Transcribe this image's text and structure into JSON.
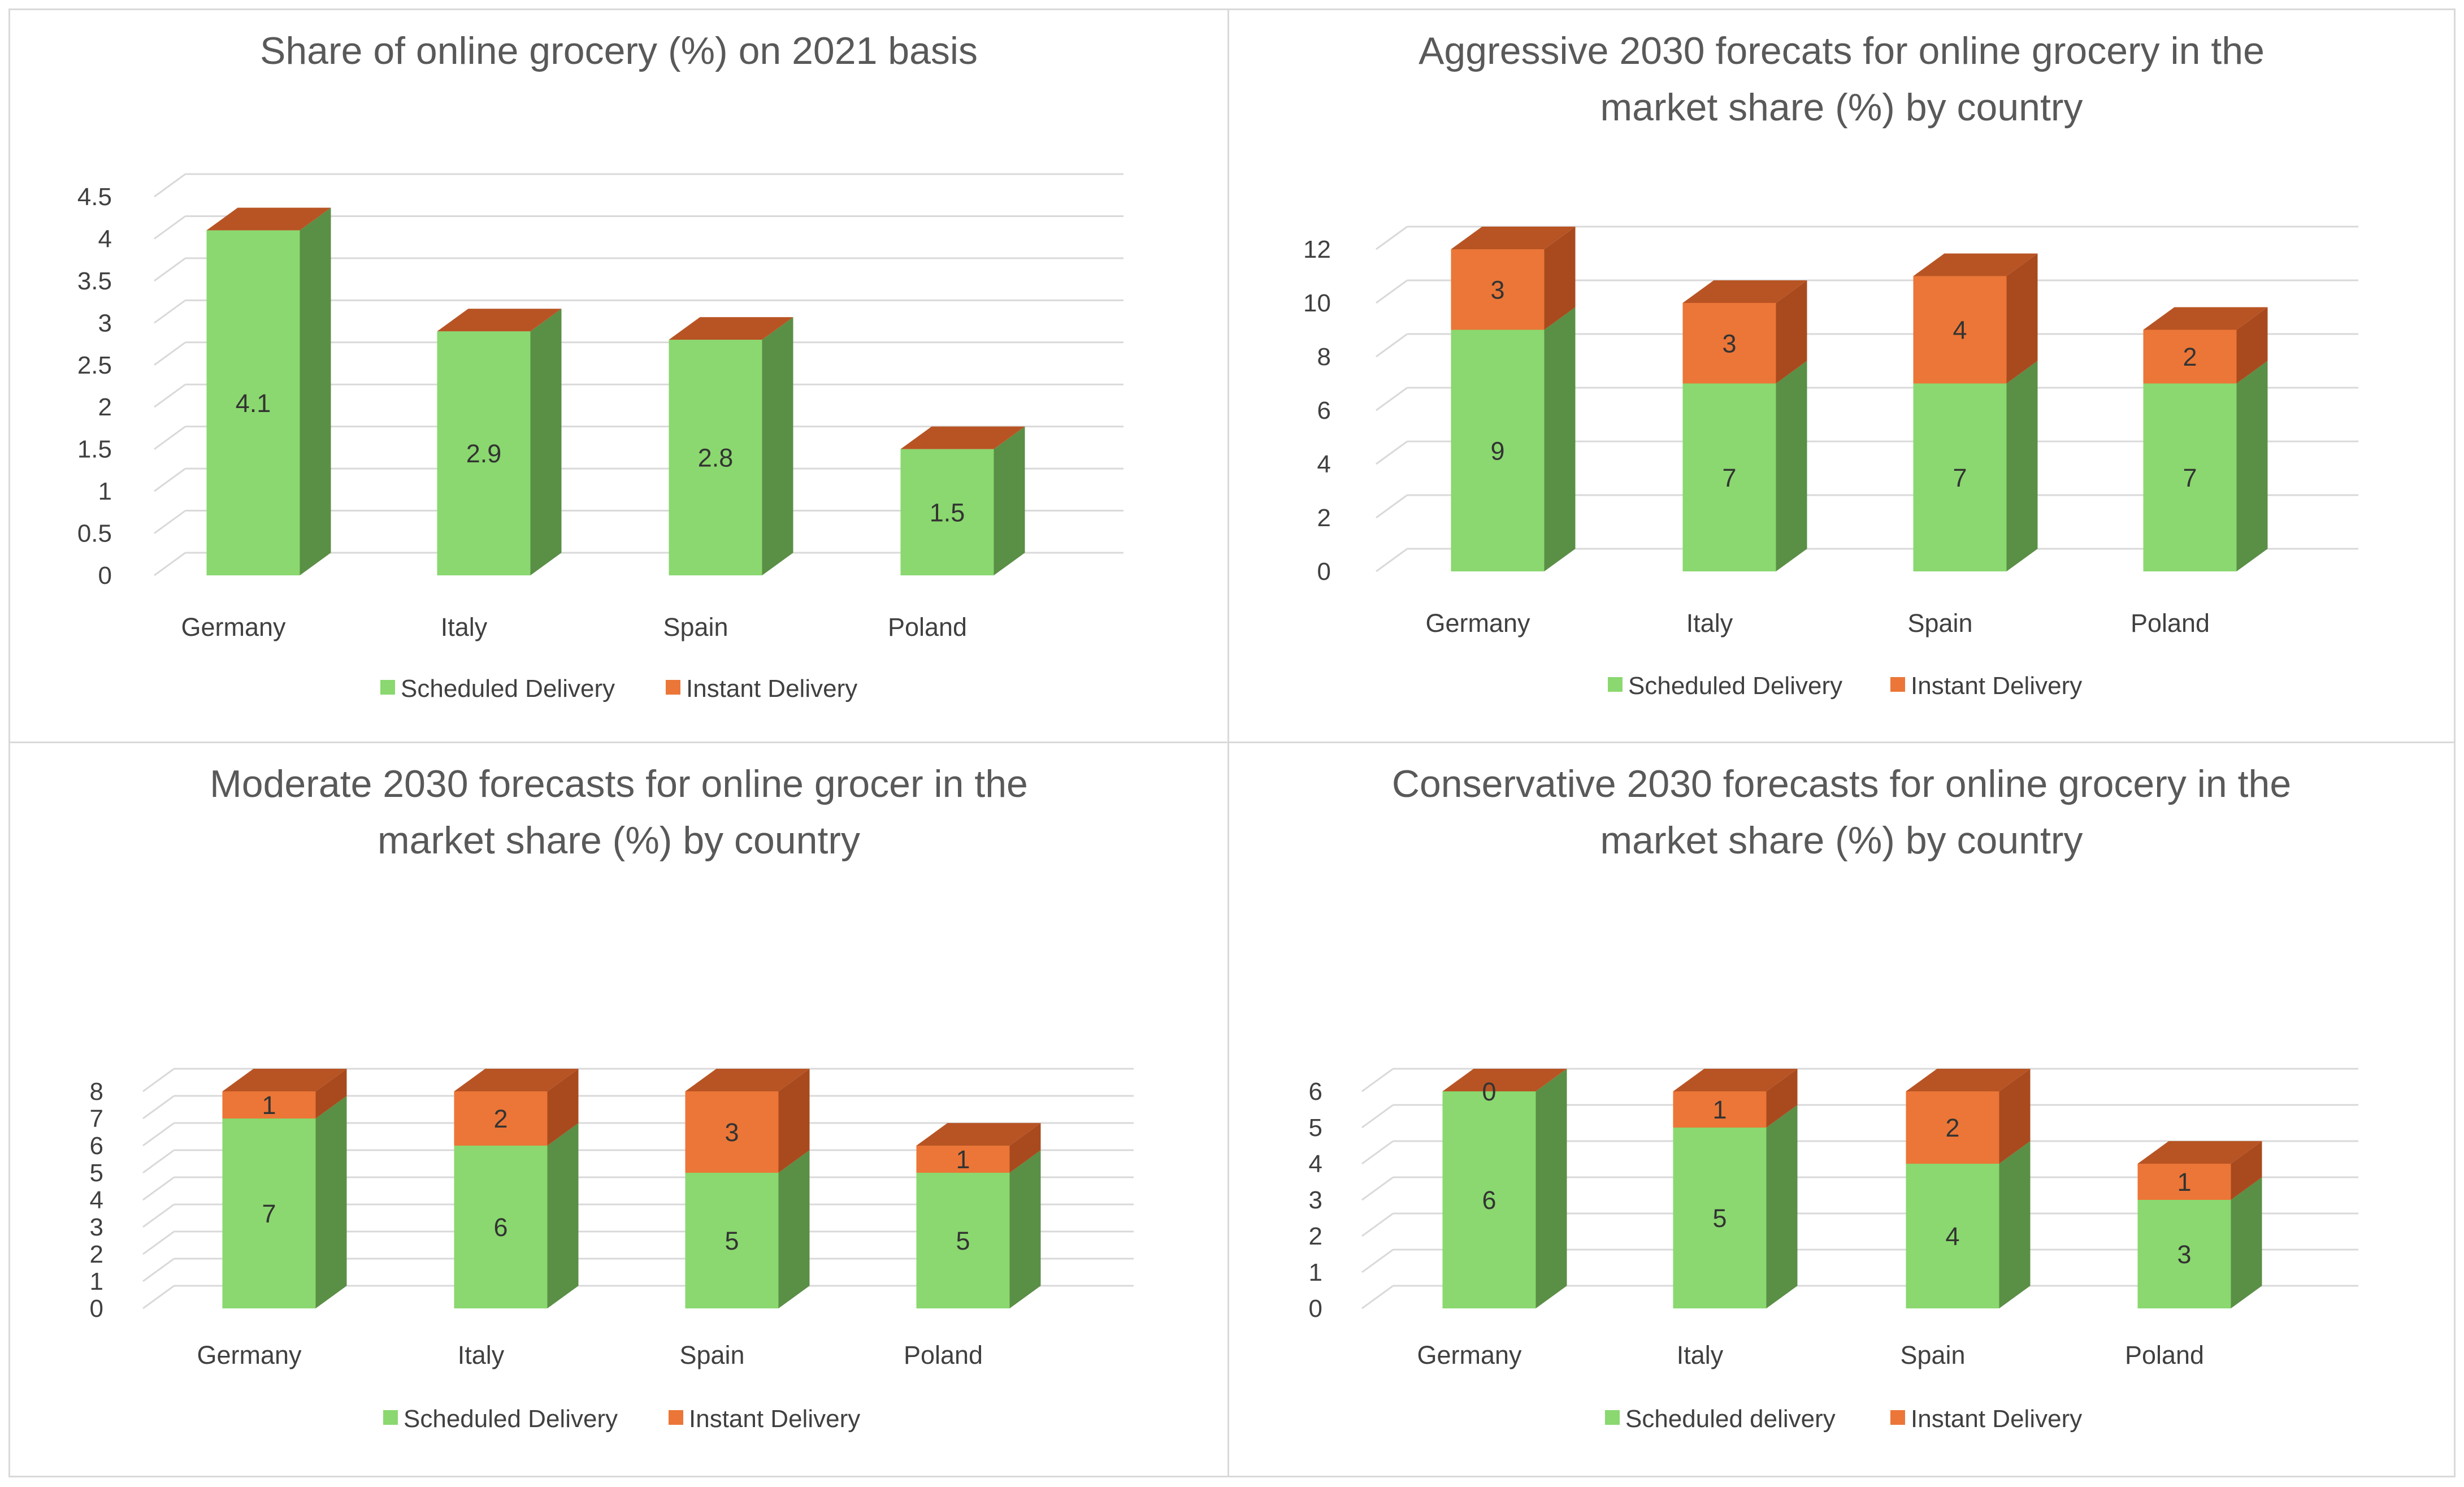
{
  "colors": {
    "green": "#8ad86f",
    "green_side": "#5a8f46",
    "orange": "#eb7637",
    "orange_side": "#a84a1e",
    "orange_top": "#b85424",
    "grid": "#d9d9d9"
  },
  "chart_data": [
    {
      "type": "bar",
      "title": [
        "Share of online grocery (%) on 2021 basis"
      ],
      "categories": [
        "Germany",
        "Italy",
        "Spain",
        "Poland"
      ],
      "series": [
        {
          "name": "Scheduled Delivery",
          "values": [
            4.1,
            2.9,
            2.8,
            1.5
          ]
        },
        {
          "name": "Instant Delivery",
          "values": [
            0,
            0,
            0,
            0
          ]
        }
      ],
      "value_labels": [
        [
          "4.1",
          "2.9",
          "2.8",
          "1.5"
        ],
        [
          "",
          "",
          "",
          ""
        ]
      ],
      "ylim": [
        0,
        4.5
      ],
      "yticks": [
        "0",
        "0.5",
        "1",
        "1.5",
        "2",
        "2.5",
        "3",
        "3.5",
        "4",
        "4.5"
      ],
      "legend": [
        "Scheduled Delivery",
        "Instant Delivery"
      ],
      "stacked": true,
      "grid": true,
      "legend_position": "bottom"
    },
    {
      "type": "bar",
      "title": [
        "Aggressive 2030 forecats for online grocery in the",
        "market share (%) by country"
      ],
      "categories": [
        "Germany",
        "Italy",
        "Spain",
        "Poland"
      ],
      "series": [
        {
          "name": "Scheduled Delivery",
          "values": [
            9,
            7,
            7,
            7
          ]
        },
        {
          "name": "Instant Delivery",
          "values": [
            3,
            3,
            4,
            2
          ]
        }
      ],
      "value_labels": [
        [
          "9",
          "7",
          "7",
          "7"
        ],
        [
          "3",
          "3",
          "4",
          "2"
        ]
      ],
      "ylim": [
        0,
        12
      ],
      "yticks": [
        "0",
        "2",
        "4",
        "6",
        "8",
        "10",
        "12"
      ],
      "legend": [
        "Scheduled Delivery",
        "Instant Delivery"
      ],
      "stacked": true,
      "grid": true,
      "legend_position": "bottom"
    },
    {
      "type": "bar",
      "title": [
        "Moderate 2030 forecasts for online grocer in the",
        "market share (%) by country"
      ],
      "categories": [
        "Germany",
        "Italy",
        "Spain",
        "Poland"
      ],
      "series": [
        {
          "name": "Scheduled Delivery",
          "values": [
            7,
            6,
            5,
            5
          ]
        },
        {
          "name": "Instant Delivery",
          "values": [
            1,
            2,
            3,
            1
          ]
        }
      ],
      "value_labels": [
        [
          "7",
          "6",
          "5",
          "5"
        ],
        [
          "1",
          "2",
          "3",
          "1"
        ]
      ],
      "ylim": [
        0,
        8
      ],
      "yticks": [
        "0",
        "1",
        "2",
        "3",
        "4",
        "5",
        "6",
        "7",
        "8"
      ],
      "legend": [
        "Scheduled Delivery",
        "Instant Delivery"
      ],
      "stacked": true,
      "grid": true,
      "legend_position": "bottom"
    },
    {
      "type": "bar",
      "title": [
        "Conservative 2030 forecasts for online grocery in the",
        "market share (%) by country"
      ],
      "categories": [
        "Germany",
        "Italy",
        "Spain",
        "Poland"
      ],
      "series": [
        {
          "name": "Scheduled delivery",
          "values": [
            6,
            5,
            4,
            3
          ]
        },
        {
          "name": "Instant Delivery",
          "values": [
            0,
            1,
            2,
            1
          ]
        }
      ],
      "value_labels": [
        [
          "6",
          "5",
          "4",
          "3"
        ],
        [
          "0",
          "1",
          "2",
          "1"
        ]
      ],
      "ylim": [
        0,
        6
      ],
      "yticks": [
        "0",
        "1",
        "2",
        "3",
        "4",
        "5",
        "6"
      ],
      "legend": [
        "Scheduled delivery",
        "Instant Delivery"
      ],
      "stacked": true,
      "grid": true,
      "legend_position": "bottom"
    }
  ]
}
